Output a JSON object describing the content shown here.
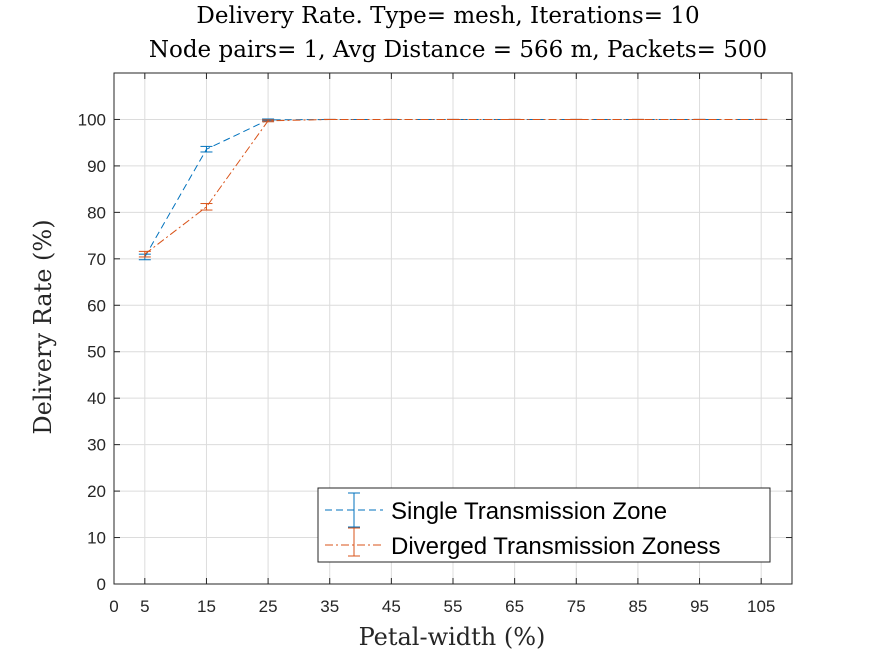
{
  "chart_data": {
    "type": "line",
    "title": [
      "Delivery Rate. Type= mesh, Iterations= 10",
      "Node pairs= 1, Avg Distance = 566 m, Packets= 500"
    ],
    "xlabel": "Petal-width (%)",
    "ylabel": "Delivery Rate (%)",
    "xlim": [
      0,
      110
    ],
    "ylim": [
      0,
      110
    ],
    "xticks": [
      0,
      5,
      15,
      25,
      35,
      45,
      55,
      65,
      75,
      85,
      95,
      105
    ],
    "yticks": [
      0,
      10,
      20,
      30,
      40,
      50,
      60,
      70,
      80,
      90,
      100
    ],
    "grid": true,
    "legend_position": "bottom-right",
    "series": [
      {
        "name": "Single Transmission Zone",
        "color": "#0072BD",
        "linestyle": "dashed",
        "x": [
          5,
          15,
          25,
          35,
          45,
          55,
          65,
          75,
          85,
          95,
          105
        ],
        "y": [
          70.4,
          93.6,
          99.9,
          100,
          100,
          100,
          100,
          100,
          100,
          100,
          100
        ],
        "err": [
          0.6,
          0.6,
          0.2,
          0,
          0,
          0,
          0,
          0,
          0,
          0,
          0
        ]
      },
      {
        "name": "Diverged Transmission Zoness",
        "color": "#D95319",
        "linestyle": "dashdot",
        "x": [
          5,
          15,
          25,
          35,
          45,
          55,
          65,
          75,
          85,
          95,
          105
        ],
        "y": [
          71.0,
          81.2,
          99.7,
          100,
          100,
          100,
          100,
          100,
          100,
          100,
          100
        ],
        "err": [
          0.6,
          0.7,
          0.2,
          0,
          0,
          0,
          0,
          0,
          0,
          0,
          0
        ]
      }
    ]
  }
}
